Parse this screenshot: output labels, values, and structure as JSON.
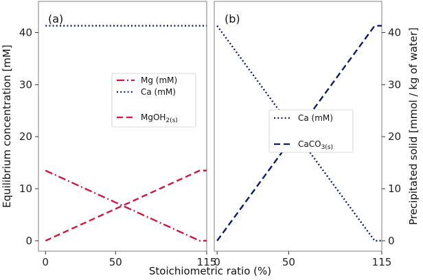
{
  "colors": {
    "red": "#d4143c",
    "navy": "#0a1a6e"
  },
  "axes": {
    "xlabel": "Stoichiometric ratio (%)",
    "ylabel_left": "Equilibrium concentration [mM]",
    "ylabel_right": "Precipitated solid [mmol / kg of water]",
    "xticks": [
      "0",
      "50",
      "115"
    ],
    "yticks_left": [
      "0",
      "10",
      "20",
      "30",
      "40"
    ],
    "yticks_right": [
      "0",
      "10",
      "20",
      "30",
      "40"
    ]
  },
  "chart_data": [
    {
      "type": "line",
      "panel_label": "(a)",
      "x": [
        0,
        110,
        115
      ],
      "xlim": [
        -5,
        115
      ],
      "ylim": [
        -2,
        46
      ],
      "series": [
        {
          "name": "Mg (mM)",
          "style": "dashdot",
          "color": "#d4143c",
          "x": [
            0,
            110,
            115
          ],
          "values": [
            13.5,
            0,
            0
          ]
        },
        {
          "name": "Ca (mM)",
          "style": "dotted",
          "color": "#0a1a6e",
          "x": [
            0,
            110,
            115
          ],
          "values": [
            41.3,
            41.3,
            41.3
          ]
        },
        {
          "name": "MgOH2(s)",
          "style": "dashed",
          "color": "#d4143c",
          "x": [
            0,
            110,
            115
          ],
          "values": [
            0,
            13.5,
            13.5
          ]
        }
      ],
      "legend": {
        "placement": "center-right",
        "entries": [
          {
            "text": "Mg (mM)"
          },
          {
            "text": "Ca (mM)"
          },
          {
            "text": "MgOH",
            "sub": "2(s)"
          }
        ]
      }
    },
    {
      "type": "line",
      "panel_label": "(b)",
      "x": [
        0,
        110,
        115
      ],
      "xlim": [
        -2,
        115
      ],
      "ylim": [
        -2,
        46
      ],
      "series": [
        {
          "name": "Ca (mM)",
          "style": "dotted",
          "color": "#0a1a6e",
          "x": [
            0,
            110,
            115
          ],
          "values": [
            41.3,
            0,
            0
          ]
        },
        {
          "name": "CaCO3(s)",
          "style": "dashed",
          "color": "#0a1a6e",
          "x": [
            0,
            110,
            115
          ],
          "values": [
            0,
            41.3,
            41.3
          ]
        }
      ],
      "legend": {
        "placement": "center-right",
        "entries": [
          {
            "text": "Ca (mM)"
          },
          {
            "text": "CaCO",
            "sub": "3(s)"
          }
        ]
      }
    }
  ]
}
